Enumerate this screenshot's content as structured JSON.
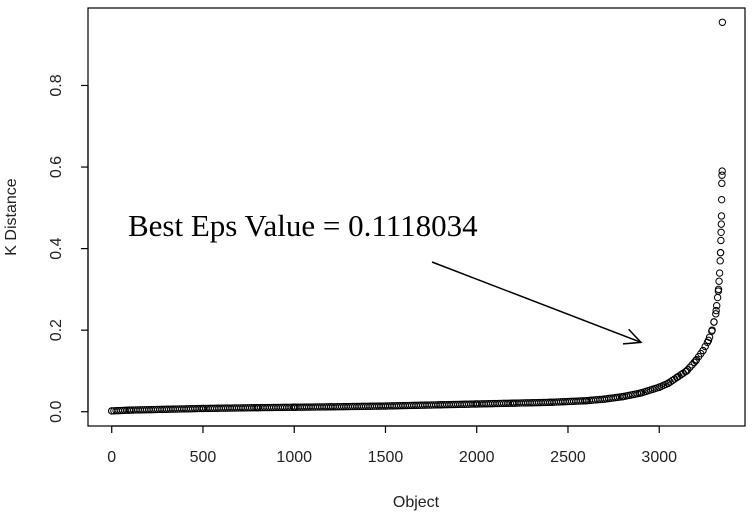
{
  "chart_data": {
    "type": "scatter",
    "title": "",
    "xlabel": "Object",
    "ylabel": "K Distance",
    "xlim": [
      -130,
      3470
    ],
    "ylim": [
      -0.035,
      0.99
    ],
    "xticks": [
      0,
      500,
      1000,
      1500,
      2000,
      2500,
      3000
    ],
    "xtick_labels": [
      "0",
      "500",
      "1000",
      "1500",
      "2000",
      "2500",
      "3000"
    ],
    "yticks": [
      0.0,
      0.2,
      0.4,
      0.6,
      0.8
    ],
    "ytick_labels": [
      "0.0",
      "0.2",
      "0.4",
      "0.6",
      "0.8"
    ],
    "grid": false,
    "legend": "none",
    "marker": "open-circle",
    "series": [
      {
        "points": [
          [
            0,
            0.002
          ],
          [
            100,
            0.004
          ],
          [
            300,
            0.006
          ],
          [
            500,
            0.008
          ],
          [
            800,
            0.01
          ],
          [
            1000,
            0.011
          ],
          [
            1200,
            0.012
          ],
          [
            1500,
            0.014
          ],
          [
            1800,
            0.017
          ],
          [
            2000,
            0.019
          ],
          [
            2200,
            0.021
          ],
          [
            2400,
            0.023
          ],
          [
            2600,
            0.027
          ],
          [
            2700,
            0.031
          ],
          [
            2800,
            0.037
          ],
          [
            2900,
            0.046
          ],
          [
            3000,
            0.06
          ],
          [
            3050,
            0.07
          ],
          [
            3100,
            0.085
          ],
          [
            3150,
            0.1
          ],
          [
            3200,
            0.125
          ],
          [
            3240,
            0.15
          ],
          [
            3270,
            0.175
          ],
          [
            3290,
            0.2
          ],
          [
            3300,
            0.22
          ],
          [
            3310,
            0.24
          ],
          [
            3315,
            0.26
          ],
          [
            3320,
            0.28
          ],
          [
            3325,
            0.3
          ],
          [
            3328,
            0.32
          ],
          [
            3331,
            0.34
          ],
          [
            3334,
            0.37
          ],
          [
            3336,
            0.39
          ],
          [
            3338,
            0.42
          ],
          [
            3339,
            0.44
          ],
          [
            3340,
            0.46
          ],
          [
            3341,
            0.48
          ],
          [
            3342,
            0.52
          ],
          [
            3343,
            0.56
          ],
          [
            3344,
            0.58
          ],
          [
            3345,
            0.59
          ],
          [
            3346,
            0.955
          ]
        ]
      }
    ],
    "annotations": [
      {
        "text": "Best Eps Value  = 0.1118034",
        "arrow_to": [
          2900,
          0.17
        ]
      }
    ]
  }
}
